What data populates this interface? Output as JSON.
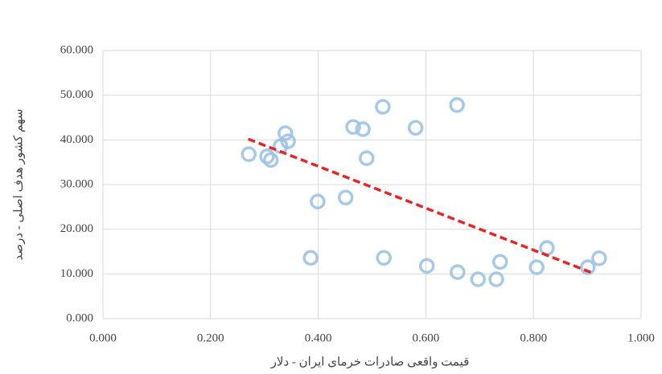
{
  "chart_data": {
    "type": "scatter",
    "x_label": "قیمت واقعی صادرات خرمای ایران - دلار",
    "y_label": "سهم کشور هدف اصلی - درصد",
    "xlim": [
      0,
      1
    ],
    "ylim": [
      0,
      60
    ],
    "xticks": [
      {
        "value": 0,
        "label": "0.000"
      },
      {
        "value": 0.2,
        "label": "0.200"
      },
      {
        "value": 0.4,
        "label": "0.400"
      },
      {
        "value": 0.6,
        "label": "0.600"
      },
      {
        "value": 0.8,
        "label": "0.800"
      },
      {
        "value": 1,
        "label": "1.000"
      }
    ],
    "yticks": [
      {
        "value": 0,
        "label": "0.000"
      },
      {
        "value": 10,
        "label": "10.000"
      },
      {
        "value": 20,
        "label": "20.000"
      },
      {
        "value": 30,
        "label": "30.000"
      },
      {
        "value": 40,
        "label": "40.000"
      },
      {
        "value": 50,
        "label": "50.000"
      },
      {
        "value": 60,
        "label": "60.000"
      }
    ],
    "grid": true,
    "series": [
      {
        "color": "#9dc3e6",
        "x": [
          0.271,
          0.305,
          0.312,
          0.339,
          0.344,
          0.33,
          0.386,
          0.399,
          0.451,
          0.465,
          0.483,
          0.49,
          0.52,
          0.522,
          0.581,
          0.602,
          0.658,
          0.659,
          0.697,
          0.731,
          0.738,
          0.806,
          0.825,
          0.922,
          0.901
        ],
        "values": [
          36.8,
          36.3,
          35.5,
          41.5,
          39.7,
          38.6,
          13.6,
          26.2,
          27.1,
          42.9,
          42.4,
          35.9,
          47.4,
          13.6,
          42.7,
          11.8,
          47.8,
          10.4,
          8.8,
          8.8,
          12.7,
          11.5,
          15.8,
          13.5,
          11.5
        ]
      }
    ],
    "trendline": {
      "color": "#e32626",
      "x": [
        0.27,
        0.91
      ],
      "values": [
        40.2,
        10.2
      ]
    }
  }
}
